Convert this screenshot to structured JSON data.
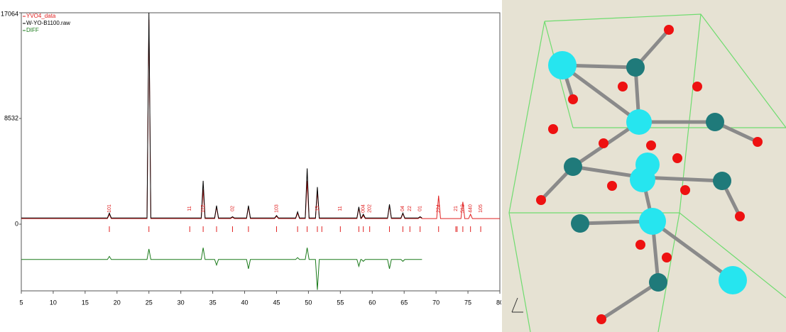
{
  "chart_data": {
    "type": "line",
    "x": [
      5,
      18.5,
      18.8,
      19.1,
      24.7,
      25.0,
      25.3,
      33.2,
      33.5,
      33.8,
      35.3,
      35.6,
      35.9,
      37.8,
      38.1,
      38.4,
      40.3,
      40.6,
      40.9,
      44.7,
      45.0,
      45.3,
      48.0,
      48.3,
      48.6,
      49.5,
      49.8,
      50.1,
      51.1,
      51.4,
      51.7,
      54.7,
      55.0,
      55.3,
      57.6,
      57.9,
      58.2,
      58.3,
      58.6,
      58.9,
      62.4,
      62.7,
      63.0,
      64.5,
      64.8,
      65.1,
      67.2,
      67.5,
      67.8,
      70.1,
      70.4,
      70.7,
      73.9,
      74.2,
      74.5,
      75.1,
      75.4,
      75.7,
      76.7,
      77.0,
      77.3,
      80
    ],
    "series": [
      {
        "name": "YVO4_data",
        "color": "#e02020",
        "values": [
          450,
          450,
          800,
          450,
          450,
          16500,
          450,
          450,
          2800,
          450,
          450,
          1400,
          450,
          450,
          550,
          450,
          450,
          1400,
          450,
          450,
          650,
          450,
          450,
          900,
          450,
          450,
          3500,
          450,
          450,
          2700,
          450,
          450,
          450,
          450,
          450,
          1300,
          450,
          450,
          700,
          450,
          450,
          1500,
          450,
          450,
          850,
          450,
          450,
          550,
          450,
          450,
          2300,
          450,
          450,
          1800,
          450,
          450,
          800,
          450,
          450,
          450,
          450,
          450
        ]
      },
      {
        "name": "W-YO-B1100.raw",
        "color": "#000000",
        "values": [
          500,
          500,
          900,
          500,
          500,
          17064,
          500,
          500,
          3500,
          500,
          500,
          1500,
          500,
          500,
          600,
          500,
          500,
          1500,
          500,
          500,
          700,
          500,
          500,
          1000,
          500,
          500,
          4500,
          500,
          500,
          3000,
          500,
          500,
          500,
          500,
          500,
          1400,
          500,
          500,
          800,
          500,
          500,
          1600,
          500,
          500,
          900,
          500,
          500,
          600,
          500,
          null,
          null,
          null,
          null,
          null,
          null,
          null,
          null,
          null,
          null,
          null,
          null,
          null
        ]
      },
      {
        "name": "DIFF",
        "color": "#1a7a1a",
        "values": [
          -2850,
          -2850,
          -2600,
          -2850,
          -2850,
          -2000,
          -2850,
          -2850,
          -1900,
          -2850,
          -2850,
          -3300,
          -2850,
          -2850,
          -2850,
          -2850,
          -2850,
          -3600,
          -2850,
          -2850,
          -2850,
          -2850,
          -2850,
          -2700,
          -2850,
          -2850,
          -1900,
          -2850,
          -2850,
          -5300,
          -2850,
          -2850,
          -2850,
          -2850,
          -2850,
          -3400,
          -2850,
          -2850,
          -3000,
          -2850,
          -2850,
          -3600,
          -2850,
          -2850,
          -3000,
          -2850,
          -2850,
          -2850,
          -2850,
          null,
          null,
          null,
          null,
          null,
          null,
          null,
          null,
          null,
          null,
          null,
          null,
          null
        ]
      }
    ],
    "reflections": [
      18.8,
      25.0,
      31.4,
      33.5,
      35.6,
      38.1,
      40.6,
      45.0,
      48.3,
      49.8,
      51.4,
      52.1,
      55.0,
      57.9,
      58.6,
      59.6,
      62.7,
      64.8,
      65.9,
      67.5,
      70.4,
      73.1,
      73.3,
      74.2,
      75.4,
      77.0
    ],
    "annotations": [
      {
        "x": 18.8,
        "text": "101"
      },
      {
        "x": 31.4,
        "text": "11"
      },
      {
        "x": 33.5,
        "text": "112"
      },
      {
        "x": 38.1,
        "text": "02"
      },
      {
        "x": 45.0,
        "text": "103"
      },
      {
        "x": 51.4,
        "text": "13"
      },
      {
        "x": 55.0,
        "text": "11"
      },
      {
        "x": 58.6,
        "text": "004"
      },
      {
        "x": 59.6,
        "text": "202"
      },
      {
        "x": 64.8,
        "text": "04"
      },
      {
        "x": 65.9,
        "text": "22"
      },
      {
        "x": 67.5,
        "text": "01"
      },
      {
        "x": 70.4,
        "text": "224"
      },
      {
        "x": 73.1,
        "text": "21"
      },
      {
        "x": 74.2,
        "text": "512"
      },
      {
        "x": 75.4,
        "text": "440"
      },
      {
        "x": 77.0,
        "text": "105"
      }
    ],
    "xlim": [
      5,
      80
    ],
    "xticks": [
      5,
      10,
      15,
      20,
      25,
      30,
      35,
      40,
      45,
      50,
      55,
      60,
      65,
      70,
      75,
      80
    ],
    "ylim": [
      -5383,
      17064
    ],
    "yticks": [
      0,
      8532,
      17064
    ]
  }
}
